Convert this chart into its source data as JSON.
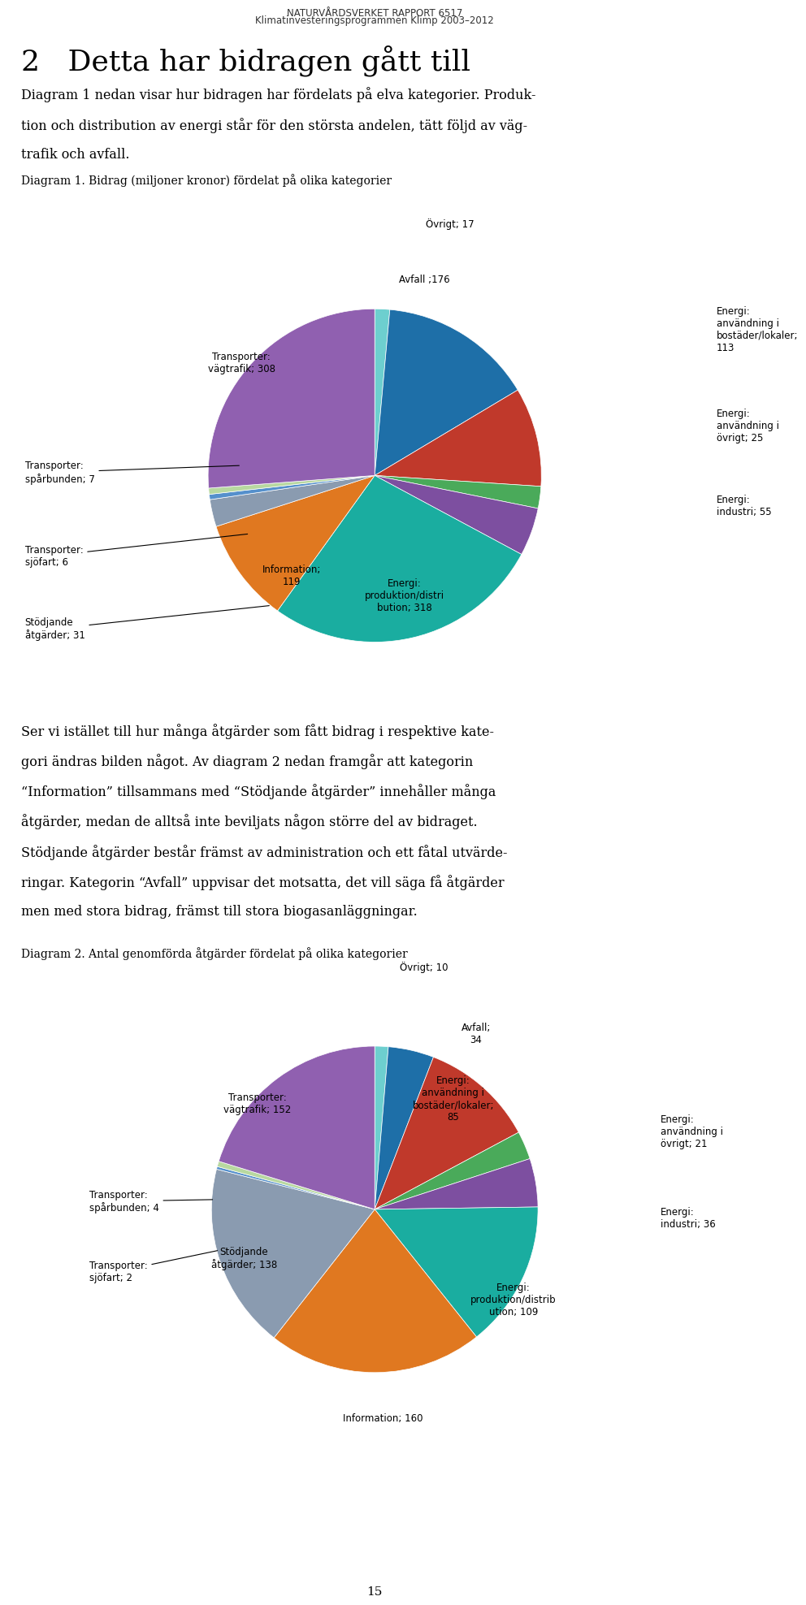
{
  "header_line1": "NATURVÅRDSVERKET RAPPORT 6517",
  "header_line2": "Klimatinvesteringsprogrammen Klimp 2003–2012",
  "main_title": "2   Detta har bidragen gått till",
  "diagram1_title": "Diagram 1. Bidrag (miljoner kronor) fördelat på olika kategorier",
  "diagram2_title": "Diagram 2. Antal genomförda åtgärder fördelat på olika kategorier",
  "diagram1_values": [
    17,
    176,
    113,
    25,
    55,
    318,
    119,
    31,
    6,
    7,
    308
  ],
  "diagram1_colors": [
    "#6dcfcf",
    "#1e6fa8",
    "#c0392b",
    "#4aaa5a",
    "#7d4fa0",
    "#1aada0",
    "#e07820",
    "#8a9bb0",
    "#5590cc",
    "#b8d8a0",
    "#9060b0"
  ],
  "diagram1_labels": [
    "Övrigt; 17",
    "Avfall ;176",
    "Energi:\nanvändning i\nbostäder/lokaler;\n113",
    "Energi:\nanvändning i\növrigt; 25",
    "Energi:\nindustri; 55",
    "Energi:\nproduktion/distri\nbution; 318",
    "Information;\n119",
    "Stödjande\nåtgärder; 31",
    "Transporter:\nsjöfart; 6",
    "Transporter:\nspårbunden; 7",
    "Transporter:\nvägtrafik; 308"
  ],
  "diagram2_values": [
    10,
    34,
    85,
    21,
    36,
    109,
    160,
    138,
    2,
    4,
    152
  ],
  "diagram2_colors": [
    "#6dcfcf",
    "#1e6fa8",
    "#c0392b",
    "#4aaa5a",
    "#7d4fa0",
    "#1aada0",
    "#e07820",
    "#8a9bb0",
    "#5590cc",
    "#b8d8a0",
    "#9060b0"
  ],
  "diagram2_labels": [
    "Övrigt; 10",
    "Avfall;\n34",
    "Energi:\nanvändning i\nbostäder/lokaler;\n85",
    "Energi:\nanvändning i\növrigt; 21",
    "Energi:\nindustri; 36",
    "Energi:\nproduktion/distrib\nution; 109",
    "Information; 160",
    "Stödjande\nåtgärder; 138",
    "Transporter:\nsjöfart; 2",
    "Transporter:\nspårbunden; 4",
    "Transporter:\nvägtrafik; 152"
  ],
  "page_number": "15"
}
